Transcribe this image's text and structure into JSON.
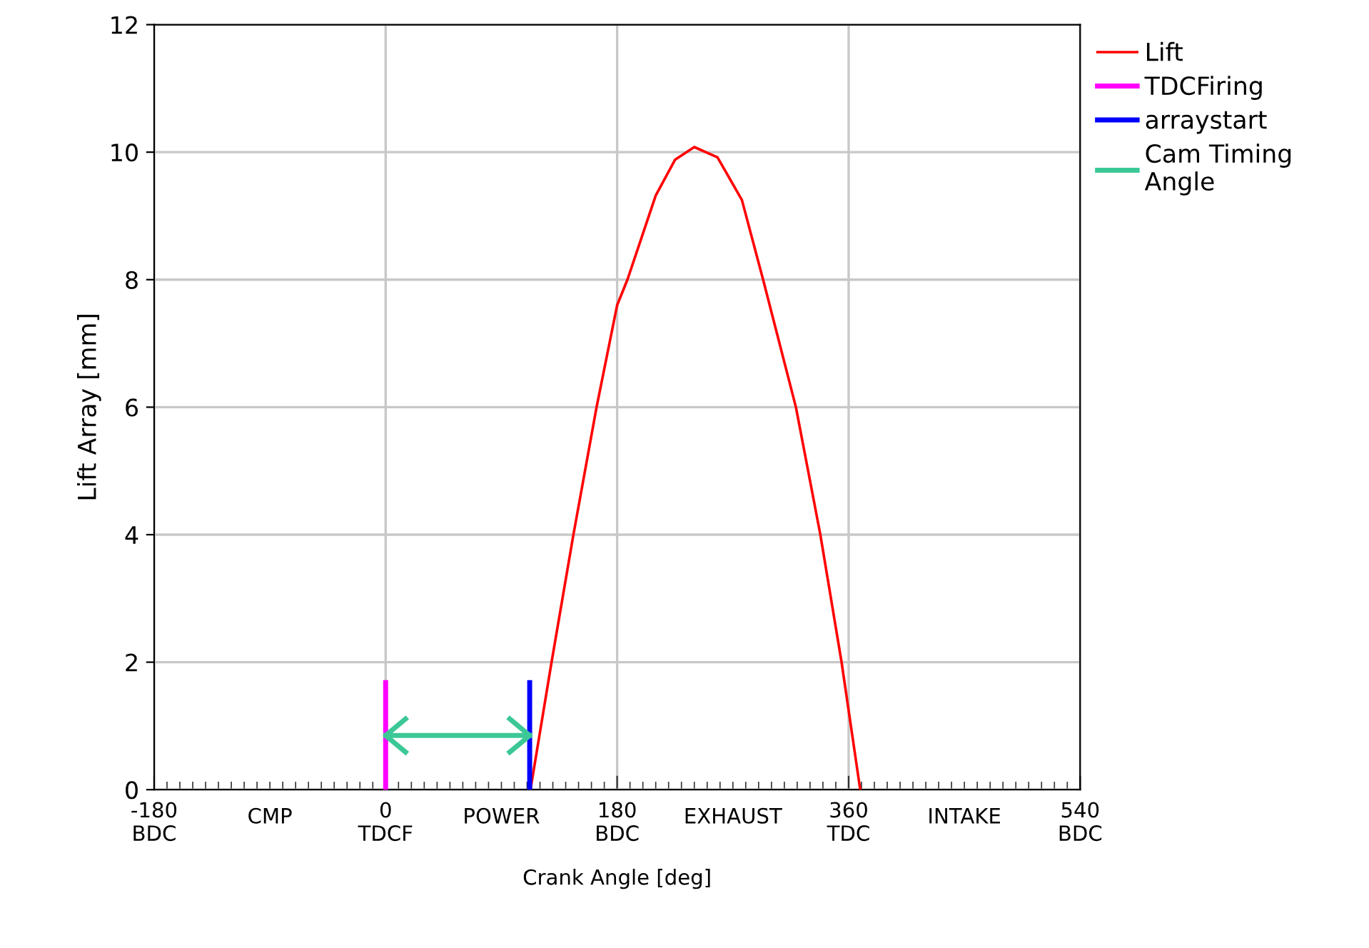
{
  "chart_data": {
    "type": "line",
    "xlabel": "Crank Angle [deg]",
    "ylabel": "Lift Array [mm]",
    "xlim": [
      -180,
      540
    ],
    "ylim": [
      0,
      12
    ],
    "xticks": [
      {
        "value": -180,
        "label": "-180\nBDC"
      },
      {
        "value": 0,
        "label": "0\nTDCF"
      },
      {
        "value": 180,
        "label": "180\nBDC"
      },
      {
        "value": 360,
        "label": "360\nTDC"
      },
      {
        "value": 540,
        "label": "540\nBDC"
      },
      {
        "value": -170,
        "label": null
      },
      {
        "value": -160,
        "label": null
      },
      {
        "value": -150,
        "label": null
      },
      {
        "value": -140,
        "label": null
      },
      {
        "value": -130,
        "label": null
      },
      {
        "value": -120,
        "label": null
      },
      {
        "value": -110,
        "label": null
      },
      {
        "value": -100,
        "label": null
      },
      {
        "value": -90,
        "label": null
      },
      {
        "value": -80,
        "label": null
      },
      {
        "value": -70,
        "label": null
      },
      {
        "value": -60,
        "label": null
      },
      {
        "value": -50,
        "label": null
      },
      {
        "value": -40,
        "label": null
      },
      {
        "value": -30,
        "label": null
      },
      {
        "value": -20,
        "label": null
      },
      {
        "value": -10,
        "label": null
      },
      {
        "value": 10,
        "label": null
      },
      {
        "value": 20,
        "label": null
      },
      {
        "value": 30,
        "label": null
      },
      {
        "value": 40,
        "label": null
      },
      {
        "value": 50,
        "label": null
      },
      {
        "value": 60,
        "label": null
      },
      {
        "value": 70,
        "label": null
      },
      {
        "value": 80,
        "label": null
      },
      {
        "value": 90,
        "label": null
      },
      {
        "value": 100,
        "label": null
      },
      {
        "value": 110,
        "label": null
      },
      {
        "value": 120,
        "label": null
      },
      {
        "value": 130,
        "label": null
      },
      {
        "value": 140,
        "label": null
      },
      {
        "value": 150,
        "label": null
      },
      {
        "value": 160,
        "label": null
      },
      {
        "value": 170,
        "label": null
      },
      {
        "value": 190,
        "label": null
      },
      {
        "value": 200,
        "label": null
      },
      {
        "value": 210,
        "label": null
      },
      {
        "value": 220,
        "label": null
      },
      {
        "value": 230,
        "label": null
      },
      {
        "value": 240,
        "label": null
      },
      {
        "value": 250,
        "label": null
      },
      {
        "value": 260,
        "label": null
      },
      {
        "value": 270,
        "label": null
      },
      {
        "value": 280,
        "label": null
      },
      {
        "value": 290,
        "label": null
      },
      {
        "value": 300,
        "label": null
      },
      {
        "value": 310,
        "label": null
      },
      {
        "value": 320,
        "label": null
      },
      {
        "value": 330,
        "label": null
      },
      {
        "value": 340,
        "label": null
      },
      {
        "value": 350,
        "label": null
      },
      {
        "value": 370,
        "label": null
      },
      {
        "value": 380,
        "label": null
      },
      {
        "value": 390,
        "label": null
      },
      {
        "value": 400,
        "label": null
      },
      {
        "value": 410,
        "label": null
      },
      {
        "value": 420,
        "label": null
      },
      {
        "value": 430,
        "label": null
      },
      {
        "value": 440,
        "label": null
      },
      {
        "value": 450,
        "label": null
      },
      {
        "value": 460,
        "label": null
      },
      {
        "value": 470,
        "label": null
      },
      {
        "value": 480,
        "label": null
      },
      {
        "value": 490,
        "label": null
      },
      {
        "value": 500,
        "label": null
      },
      {
        "value": 510,
        "label": null
      },
      {
        "value": 520,
        "label": null
      },
      {
        "value": 530,
        "label": null
      }
    ],
    "yticks": [
      0,
      2,
      4,
      6,
      8,
      10,
      12
    ],
    "grid": true,
    "legend": "top right",
    "marker": "none",
    "line_style": "solid",
    "annotations": [
      "CMP",
      "POWER",
      "EXHAUST",
      "INTAKE"
    ],
    "series": [
      {
        "name": "Lift",
        "color": "#ff0000",
        "x": [
          112.6,
          129,
          146,
          164,
          180,
          188,
          210,
          225,
          240,
          258,
          277,
          293.5,
          319,
          338,
          354.5,
          369
        ],
        "values": [
          0,
          2,
          4,
          6,
          7.6,
          8,
          9.32,
          9.88,
          10.08,
          9.92,
          9.25,
          8,
          6,
          4,
          2,
          0
        ]
      },
      {
        "name": "TDCFiring",
        "color": "#ff00ff",
        "x": [
          0,
          0
        ],
        "values": [
          0,
          1.68
        ]
      },
      {
        "name": "arraystart",
        "color": "#0000ff",
        "x": [
          112,
          112
        ],
        "values": [
          0,
          1.68
        ]
      },
      {
        "name": "Cam Timing\nAngle",
        "color": "#3cc896",
        "x": [
          0,
          112
        ],
        "values": [
          0.85,
          0.85
        ]
      }
    ]
  }
}
